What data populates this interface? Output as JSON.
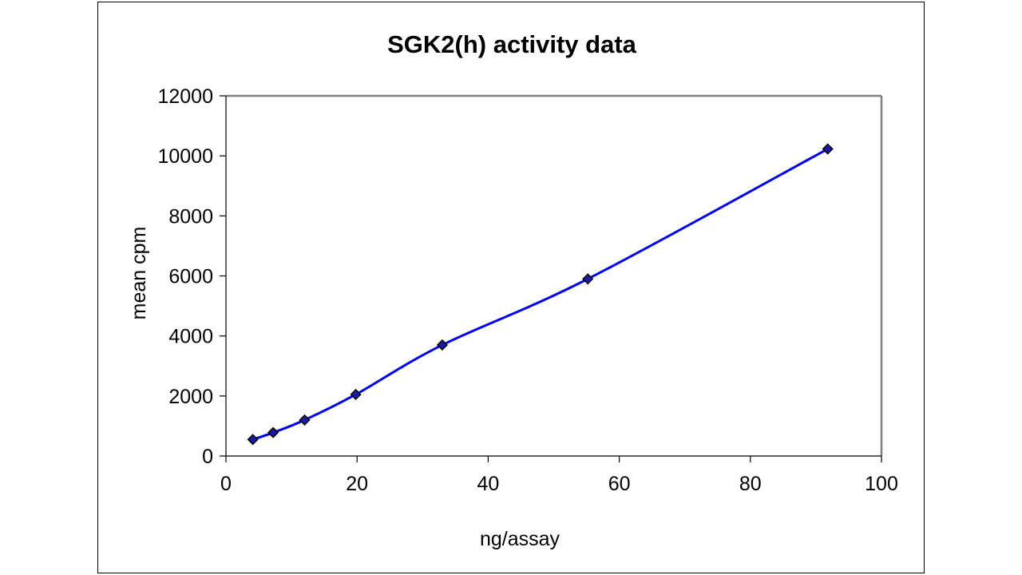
{
  "chart_data": {
    "type": "line",
    "title": "SGK2(h) activity data",
    "xlabel": "ng/assay",
    "ylabel": "mean cpm",
    "xlim": [
      0,
      100
    ],
    "ylim": [
      0,
      12000
    ],
    "x_ticks": [
      0,
      20,
      40,
      60,
      80,
      100
    ],
    "y_ticks": [
      0,
      2000,
      4000,
      6000,
      8000,
      10000,
      12000
    ],
    "grid": false,
    "legend": "none",
    "smooth": true,
    "series": [
      {
        "x": [
          4.1,
          7.2,
          12.0,
          19.8,
          33.0,
          55.2,
          91.8
        ],
        "y": [
          550,
          780,
          1200,
          2050,
          3700,
          5900,
          10230
        ]
      }
    ],
    "colors": {
      "line": "#0000ee",
      "marker_fill": "#1a1aa6",
      "marker_stroke": "#000000",
      "plot_border": "#808080",
      "frame_border": "#000000"
    }
  }
}
